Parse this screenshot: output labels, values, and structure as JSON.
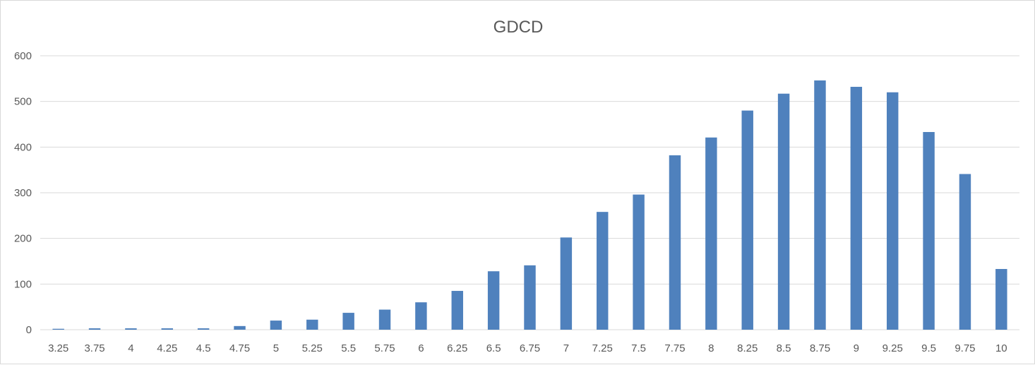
{
  "chart_data": {
    "type": "bar",
    "title": "GDCD",
    "xlabel": "",
    "ylabel": "",
    "categories": [
      "3.25",
      "3.75",
      "4",
      "4.25",
      "4.5",
      "4.75",
      "5",
      "5.25",
      "5.5",
      "5.75",
      "6",
      "6.25",
      "6.5",
      "6.75",
      "7",
      "7.25",
      "7.5",
      "7.75",
      "8",
      "8.25",
      "8.5",
      "8.75",
      "9",
      "9.25",
      "9.5",
      "9.75",
      "10"
    ],
    "values": [
      2,
      3,
      3,
      3,
      3,
      8,
      20,
      22,
      37,
      44,
      60,
      85,
      128,
      141,
      202,
      258,
      296,
      382,
      421,
      480,
      517,
      546,
      532,
      520,
      433,
      341,
      133
    ],
    "ylim": [
      0,
      600
    ],
    "yticks": [
      0,
      100,
      200,
      300,
      400,
      500,
      600
    ],
    "grid": true,
    "legend": "none",
    "bar_color": "#4F81BD",
    "grid_color": "#d9d9d9"
  }
}
